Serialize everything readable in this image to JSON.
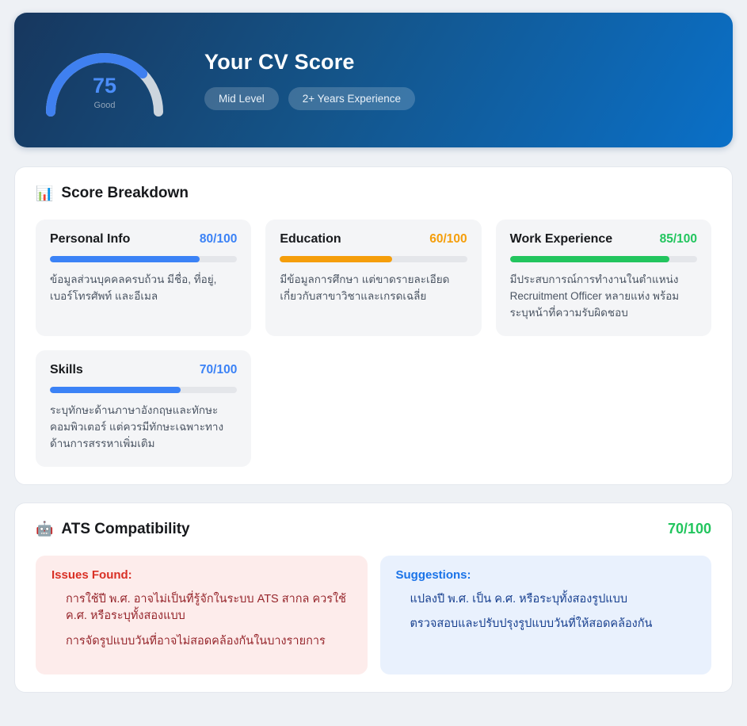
{
  "hero": {
    "title": "Your CV Score",
    "score": "75",
    "score_value": 75,
    "score_label": "Good",
    "badges": [
      "Mid Level",
      "2+ Years Experience"
    ],
    "gauge_color": "#3f80f0",
    "gauge_track_color": "#ccd5de"
  },
  "breakdown": {
    "icon": "📊",
    "title": "Score Breakdown",
    "items": [
      {
        "label": "Personal Info",
        "score": "80/100",
        "value": 80,
        "color": "#3b82f6",
        "description": "ข้อมูลส่วนบุคคลครบถ้วน มีชื่อ, ที่อยู่, เบอร์โทรศัพท์ และอีเมล"
      },
      {
        "label": "Education",
        "score": "60/100",
        "value": 60,
        "color": "#f59e0b",
        "description": "มีข้อมูลการศึกษา แต่ขาดรายละเอียดเกี่ยวกับสาขาวิชาและเกรดเฉลี่ย"
      },
      {
        "label": "Work Experience",
        "score": "85/100",
        "value": 85,
        "color": "#22c55e",
        "description": "มีประสบการณ์การทำงานในตำแหน่ง Recruitment Officer หลายแห่ง พร้อมระบุหน้าที่ความรับผิดชอบ"
      },
      {
        "label": "Skills",
        "score": "70/100",
        "value": 70,
        "color": "#3b82f6",
        "description": "ระบุทักษะด้านภาษาอังกฤษและทักษะคอมพิวเตอร์ แต่ควรมีทักษะเฉพาะทางด้านการสรรหาเพิ่มเติม"
      }
    ]
  },
  "ats": {
    "icon": "🤖",
    "title": "ATS Compatibility",
    "score": "70/100",
    "score_color": "#22c55e",
    "issues": {
      "title": "Issues Found:",
      "items": [
        "การใช้ปี พ.ศ. อาจไม่เป็นที่รู้จักในระบบ ATS สากล ควรใช้ ค.ศ. หรือระบุทั้งสองแบบ",
        "การจัดรูปแบบวันที่อาจไม่สอดคล้องกันในบางรายการ"
      ]
    },
    "suggestions": {
      "title": "Suggestions:",
      "items": [
        "แปลงปี พ.ศ. เป็น ค.ศ. หรือระบุทั้งสองรูปแบบ",
        "ตรวจสอบและปรับปรุงรูปแบบวันที่ให้สอดคล้องกัน"
      ]
    }
  }
}
